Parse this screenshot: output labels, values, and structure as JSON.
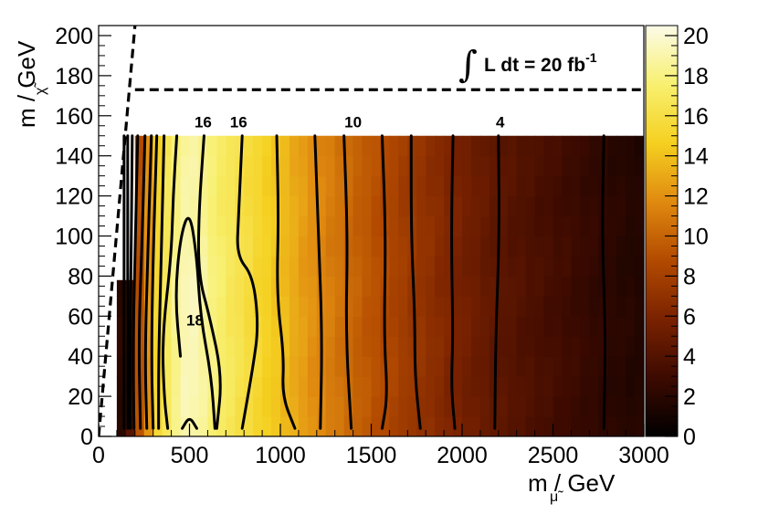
{
  "chart_data": {
    "type": "heatmap",
    "xlabel": "m / GeV",
    "xlabel_sub": "μ̃",
    "ylabel": "m / GeV",
    "ylabel_sub": "χ̃",
    "xlim": [
      0,
      3000
    ],
    "ylim": [
      0,
      205
    ],
    "x_ticks": [
      "0",
      "500",
      "1000",
      "1500",
      "2000",
      "2500",
      "3000"
    ],
    "x_tick_values": [
      0,
      500,
      1000,
      1500,
      2000,
      2500,
      3000
    ],
    "y_ticks": [
      "0",
      "20",
      "40",
      "60",
      "80",
      "100",
      "120",
      "140",
      "160",
      "180",
      "200"
    ],
    "y_tick_values": [
      0,
      20,
      40,
      60,
      80,
      100,
      120,
      140,
      160,
      180,
      200
    ],
    "colorbar": {
      "min": 0,
      "max": 20.5,
      "ticks": [
        "0",
        "2",
        "4",
        "6",
        "8",
        "10",
        "12",
        "14",
        "16",
        "18",
        "20"
      ],
      "tick_values": [
        0,
        2,
        4,
        6,
        8,
        10,
        12,
        14,
        16,
        18,
        20
      ],
      "stops": [
        "#000000",
        "#3d0a00",
        "#7a2200",
        "#b34a00",
        "#e08a10",
        "#f5d020",
        "#f8f070",
        "#fbfbe8"
      ]
    },
    "annotation": {
      "integral": "∫",
      "text": "L dt = 20 fb",
      "superscript": "-1"
    },
    "grid_region": {
      "x_range": [
        100,
        3000
      ],
      "y_range": [
        0,
        150
      ],
      "y_range_low_x": [
        0,
        78
      ],
      "low_x_cutoff": 175
    },
    "heat_profile": [
      {
        "x": 100,
        "v": 1
      },
      {
        "x": 175,
        "v": 4
      },
      {
        "x": 225,
        "v": 9
      },
      {
        "x": 275,
        "v": 12
      },
      {
        "x": 325,
        "v": 15
      },
      {
        "x": 400,
        "v": 17.2
      },
      {
        "x": 450,
        "v": 18.3
      },
      {
        "x": 500,
        "v": 18.8
      },
      {
        "x": 550,
        "v": 18.4
      },
      {
        "x": 625,
        "v": 17.5
      },
      {
        "x": 700,
        "v": 16.8
      },
      {
        "x": 775,
        "v": 16.2
      },
      {
        "x": 900,
        "v": 15.0
      },
      {
        "x": 1000,
        "v": 14.0
      },
      {
        "x": 1100,
        "v": 12.8
      },
      {
        "x": 1200,
        "v": 11.7
      },
      {
        "x": 1300,
        "v": 10.9
      },
      {
        "x": 1400,
        "v": 10.0
      },
      {
        "x": 1500,
        "v": 9.2
      },
      {
        "x": 1600,
        "v": 8.5
      },
      {
        "x": 1700,
        "v": 7.6
      },
      {
        "x": 1800,
        "v": 7.0
      },
      {
        "x": 1900,
        "v": 6.3
      },
      {
        "x": 2000,
        "v": 5.6
      },
      {
        "x": 2200,
        "v": 4.4
      },
      {
        "x": 2400,
        "v": 3.6
      },
      {
        "x": 2600,
        "v": 2.9
      },
      {
        "x": 2800,
        "v": 2.1
      },
      {
        "x": 3000,
        "v": 1.6
      }
    ],
    "contours": [
      {
        "points": [
          [
            140,
            4
          ],
          [
            140,
            150
          ]
        ]
      },
      {
        "points": [
          [
            160,
            4
          ],
          [
            160,
            150
          ]
        ]
      },
      {
        "points": [
          [
            175,
            4
          ],
          [
            172,
            40
          ],
          [
            178,
            80
          ],
          [
            185,
            150
          ]
        ]
      },
      {
        "points": [
          [
            195,
            4
          ],
          [
            188,
            40
          ],
          [
            200,
            90
          ],
          [
            215,
            150
          ]
        ]
      },
      {
        "points": [
          [
            230,
            4
          ],
          [
            220,
            50
          ],
          [
            240,
            100
          ],
          [
            255,
            150
          ]
        ]
      },
      {
        "points": [
          [
            265,
            4
          ],
          [
            255,
            40
          ],
          [
            270,
            90
          ],
          [
            290,
            150
          ]
        ]
      },
      {
        "points": [
          [
            300,
            4
          ],
          [
            290,
            40
          ],
          [
            300,
            90
          ],
          [
            320,
            150
          ]
        ]
      },
      {
        "points": [
          [
            330,
            4
          ],
          [
            330,
            40
          ],
          [
            345,
            90
          ],
          [
            360,
            150
          ]
        ]
      },
      {
        "points": [
          [
            380,
            4
          ],
          [
            360,
            20
          ],
          [
            350,
            50
          ],
          [
            400,
            90
          ],
          [
            410,
            120
          ],
          [
            430,
            150
          ]
        ]
      },
      {
        "points": [
          [
            460,
            4
          ],
          [
            500,
            10
          ],
          [
            540,
            4
          ]
        ]
      },
      {
        "points": [
          [
            450,
            40
          ],
          [
            420,
            70
          ],
          [
            450,
            100
          ],
          [
            500,
            113
          ],
          [
            540,
            90
          ],
          [
            560,
            60
          ],
          [
            620,
            30
          ],
          [
            640,
            4
          ]
        ]
      },
      {
        "points": [
          [
            580,
            150
          ],
          [
            550,
            110
          ],
          [
            550,
            80
          ],
          [
            610,
            60
          ],
          [
            680,
            30
          ],
          [
            650,
            4
          ]
        ]
      },
      {
        "points": [
          [
            790,
            150
          ],
          [
            770,
            110
          ],
          [
            760,
            90
          ],
          [
            850,
            80
          ],
          [
            880,
            55
          ],
          [
            850,
            35
          ],
          [
            790,
            4
          ]
        ]
      },
      {
        "points": [
          [
            980,
            150
          ],
          [
            990,
            110
          ],
          [
            980,
            70
          ],
          [
            1020,
            40
          ],
          [
            1010,
            20
          ],
          [
            1080,
            4
          ]
        ]
      },
      {
        "points": [
          [
            1190,
            150
          ],
          [
            1210,
            100
          ],
          [
            1230,
            50
          ],
          [
            1220,
            4
          ]
        ]
      },
      {
        "points": [
          [
            1350,
            150
          ],
          [
            1370,
            100
          ],
          [
            1360,
            50
          ],
          [
            1390,
            4
          ]
        ]
      },
      {
        "points": [
          [
            1560,
            150
          ],
          [
            1580,
            100
          ],
          [
            1570,
            50
          ],
          [
            1590,
            20
          ],
          [
            1560,
            4
          ]
        ]
      },
      {
        "points": [
          [
            1720,
            150
          ],
          [
            1720,
            100
          ],
          [
            1740,
            60
          ],
          [
            1740,
            30
          ],
          [
            1770,
            4
          ]
        ]
      },
      {
        "points": [
          [
            1950,
            150
          ],
          [
            1940,
            100
          ],
          [
            1950,
            50
          ],
          [
            1940,
            25
          ],
          [
            1960,
            4
          ]
        ]
      },
      {
        "points": [
          [
            2200,
            150
          ],
          [
            2205,
            100
          ],
          [
            2185,
            50
          ],
          [
            2180,
            4
          ]
        ]
      },
      {
        "points": [
          [
            2780,
            150
          ],
          [
            2770,
            100
          ],
          [
            2790,
            50
          ],
          [
            2780,
            4
          ]
        ]
      }
    ],
    "contour_labels": [
      {
        "text": "16",
        "x": 575,
        "y": 157
      },
      {
        "text": "16",
        "x": 770,
        "y": 157
      },
      {
        "text": "10",
        "x": 1400,
        "y": 157
      },
      {
        "text": "4",
        "x": 2210,
        "y": 157
      },
      {
        "text": "18",
        "x": 530,
        "y": 58
      }
    ],
    "dashed_lines": [
      {
        "points": [
          [
            0,
            0
          ],
          [
            200,
            205
          ]
        ]
      },
      {
        "points": [
          [
            200,
            173
          ],
          [
            3000,
            173
          ]
        ]
      }
    ]
  }
}
